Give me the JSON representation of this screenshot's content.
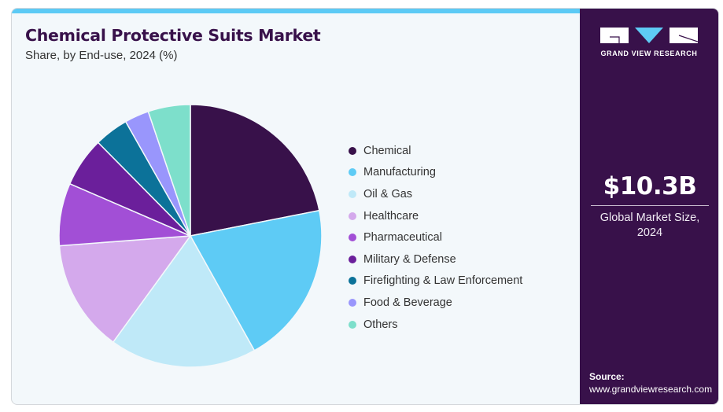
{
  "header": {
    "title": "Chemical Protective Suits Market",
    "subtitle": "Share, by End-use, 2024 (%)"
  },
  "brand": {
    "name": "GRAND VIEW RESEARCH",
    "accent_color": "#5ccaf5",
    "panel_color": "#38114a"
  },
  "summary": {
    "value": "$10.3B",
    "label_line1": "Global Market Size,",
    "label_line2": "2024"
  },
  "source": {
    "label": "Source:",
    "url": "www.grandviewresearch.com"
  },
  "chart_data": {
    "type": "pie",
    "title": "Chemical Protective Suits Market",
    "subtitle": "Share, by End-use, 2024 (%)",
    "legend_position": "right",
    "start_angle_deg": 0,
    "direction": "clockwise",
    "categories": [
      "Chemical",
      "Manufacturing",
      "Oil & Gas",
      "Healthcare",
      "Pharmaceutical",
      "Military & Defense",
      "Firefighting & Law Enforcement",
      "Food & Beverage",
      "Others"
    ],
    "values": [
      21.9,
      20.0,
      18.1,
      13.8,
      7.7,
      6.1,
      4.2,
      3.0,
      5.2
    ],
    "colors": [
      "#38114a",
      "#5ecbf5",
      "#bfe9f8",
      "#d4a9ec",
      "#a24fd6",
      "#6b1f9b",
      "#0c7299",
      "#9996fc",
      "#7ddfcb"
    ]
  }
}
